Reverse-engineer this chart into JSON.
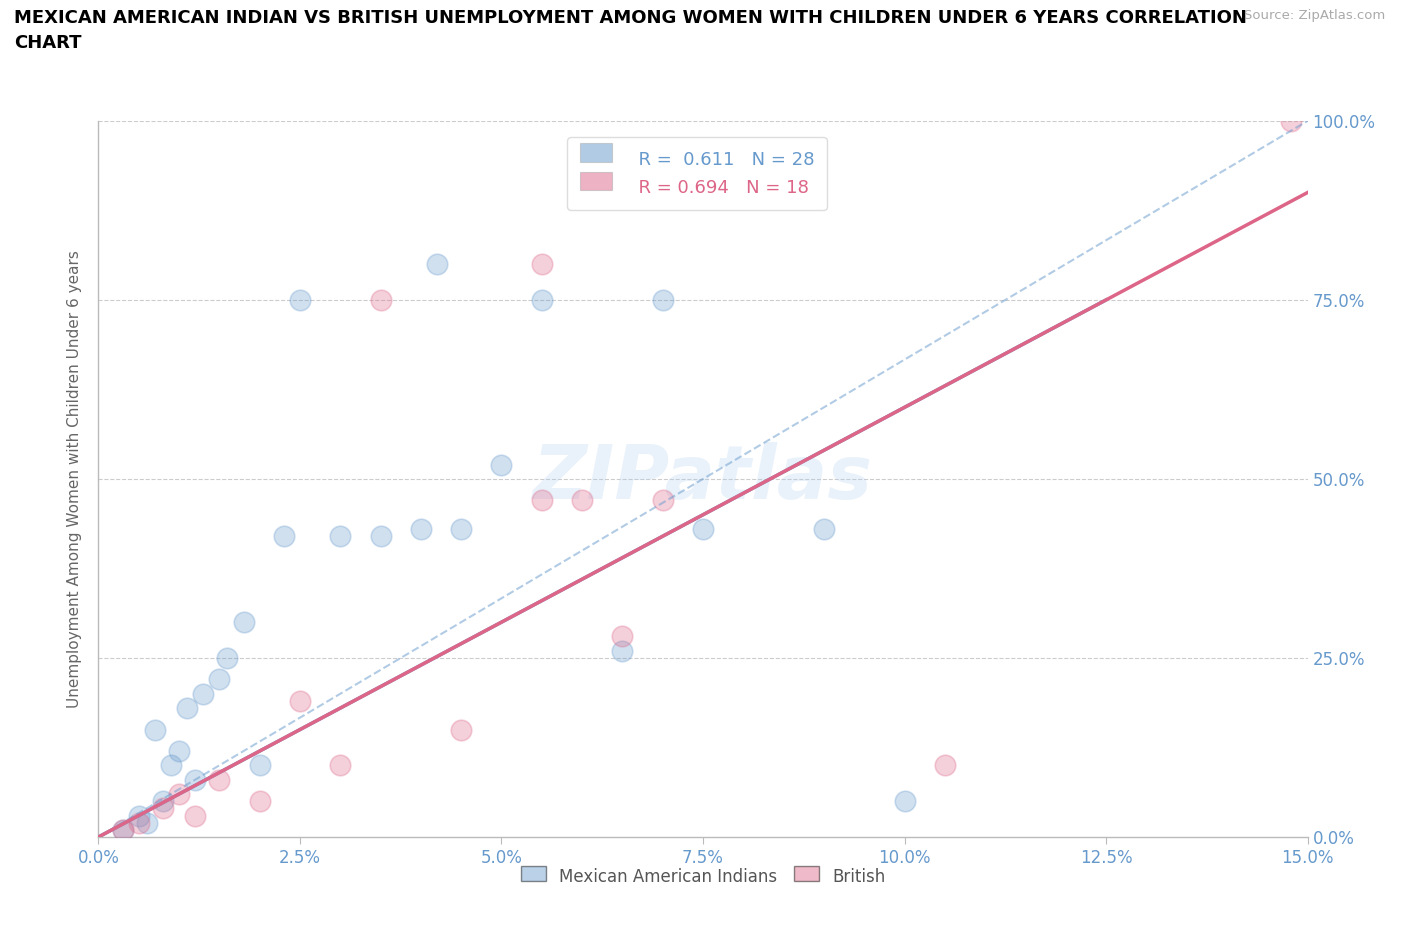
{
  "title": "MEXICAN AMERICAN INDIAN VS BRITISH UNEMPLOYMENT AMONG WOMEN WITH CHILDREN UNDER 6 YEARS CORRELATION\nCHART",
  "source": "Source: ZipAtlas.com",
  "ylabel": "Unemployment Among Women with Children Under 6 years",
  "xlim": [
    0.0,
    15.0
  ],
  "ylim": [
    0.0,
    100.0
  ],
  "xticks": [
    0.0,
    2.5,
    5.0,
    7.5,
    10.0,
    12.5,
    15.0
  ],
  "yticks": [
    0.0,
    25.0,
    50.0,
    75.0,
    100.0
  ],
  "blue_color": "#6699cc",
  "pink_color": "#dd6688",
  "legend_r_blue": "0.611",
  "legend_n_blue": "28",
  "legend_r_pink": "0.694",
  "legend_n_pink": "18",
  "watermark": "ZIPatlas",
  "blue_scatter_x": [
    0.3,
    0.5,
    0.6,
    0.7,
    0.8,
    0.9,
    1.0,
    1.1,
    1.2,
    1.3,
    1.5,
    1.6,
    1.8,
    2.0,
    2.3,
    2.5,
    3.0,
    3.5,
    4.0,
    4.5,
    5.0,
    5.5,
    6.5,
    7.0,
    7.5,
    9.0,
    10.0,
    4.2
  ],
  "blue_scatter_y": [
    1.0,
    3.0,
    2.0,
    15.0,
    5.0,
    10.0,
    12.0,
    18.0,
    8.0,
    20.0,
    22.0,
    25.0,
    30.0,
    10.0,
    42.0,
    75.0,
    42.0,
    42.0,
    43.0,
    43.0,
    52.0,
    75.0,
    26.0,
    75.0,
    43.0,
    43.0,
    5.0,
    80.0
  ],
  "pink_scatter_x": [
    0.3,
    0.5,
    0.8,
    1.0,
    1.2,
    1.5,
    2.0,
    2.5,
    3.0,
    3.5,
    4.5,
    5.5,
    6.0,
    7.0,
    10.5,
    5.5,
    6.5,
    14.8
  ],
  "pink_scatter_y": [
    1.0,
    2.0,
    4.0,
    6.0,
    3.0,
    8.0,
    5.0,
    19.0,
    10.0,
    75.0,
    15.0,
    80.0,
    47.0,
    47.0,
    10.0,
    47.0,
    28.0,
    100.0
  ],
  "blue_line_x0": 0.0,
  "blue_line_y0": 0.0,
  "blue_line_x1": 12.5,
  "blue_line_y1": 75.0,
  "blue_dash_x0": 0.0,
  "blue_dash_y0": 0.0,
  "blue_dash_x1": 15.0,
  "blue_dash_y1": 100.0,
  "pink_line_x0": 0.0,
  "pink_line_y0": 0.0,
  "pink_line_x1": 15.0,
  "pink_line_y1": 90.0
}
